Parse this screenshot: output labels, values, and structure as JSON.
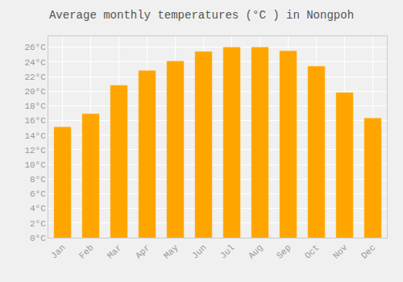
{
  "chart_data": {
    "type": "bar",
    "title": "Average monthly temperatures (°C ) in Nongpoh",
    "categories": [
      "Jan",
      "Feb",
      "Mar",
      "Apr",
      "May",
      "Jun",
      "Jul",
      "Aug",
      "Sep",
      "Oct",
      "Nov",
      "Dec"
    ],
    "values": [
      15.1,
      16.9,
      20.8,
      22.8,
      24.1,
      25.4,
      26.0,
      26.0,
      25.5,
      23.4,
      19.8,
      16.3
    ],
    "color": "#FFA500",
    "ylim": [
      0,
      27.5
    ],
    "yticks": [
      {
        "value": 0,
        "label": "0°C"
      },
      {
        "value": 2,
        "label": "2°C"
      },
      {
        "value": 4,
        "label": "4°C"
      },
      {
        "value": 6,
        "label": "6°C"
      },
      {
        "value": 8,
        "label": "8°C"
      },
      {
        "value": 10,
        "label": "10°C"
      },
      {
        "value": 12,
        "label": "12°C"
      },
      {
        "value": 14,
        "label": "14°C"
      },
      {
        "value": 16,
        "label": "16°C"
      },
      {
        "value": 18,
        "label": "18°C"
      },
      {
        "value": 20,
        "label": "20°C"
      },
      {
        "value": 22,
        "label": "22°C"
      },
      {
        "value": 24,
        "label": "24°C"
      },
      {
        "value": 26,
        "label": "26°C"
      }
    ],
    "grid": true
  }
}
